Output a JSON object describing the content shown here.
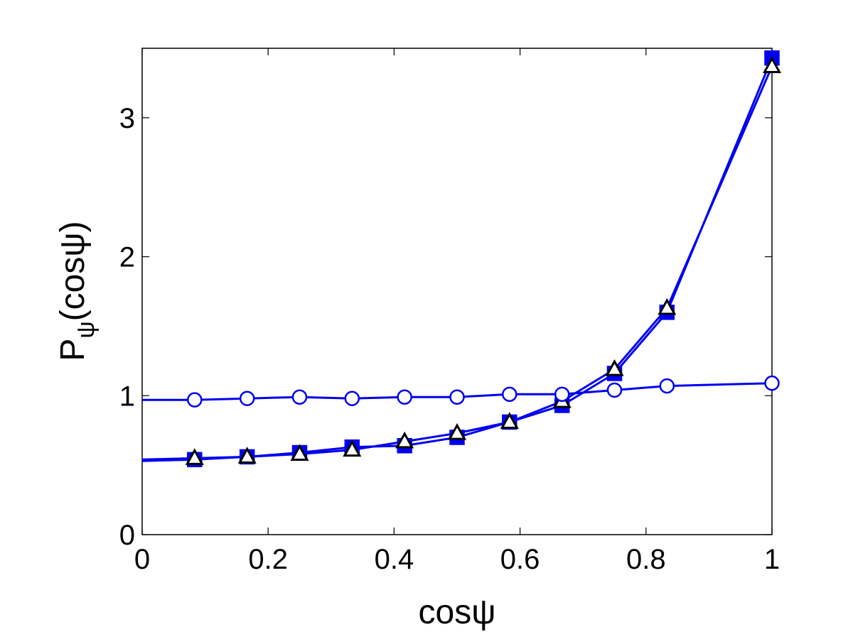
{
  "chart_data": {
    "type": "line",
    "xlabel": "cosψ",
    "ylabel_main": "P",
    "ylabel_sub": "ψ",
    "ylabel_tail": "(cosψ)",
    "xlim": [
      0,
      1
    ],
    "ylim": [
      0,
      3.5
    ],
    "xticks": [
      0,
      0.2,
      0.4,
      0.6,
      0.8,
      1
    ],
    "xtick_labels": [
      "0",
      "0.2",
      "0.4",
      "0.6",
      "0.8",
      "1"
    ],
    "yticks": [
      0,
      1,
      2,
      3
    ],
    "ytick_labels": [
      "0",
      "1",
      "2",
      "3"
    ],
    "grid": false,
    "colors": {
      "line": "#0000ee",
      "square_fill": "#0000ee",
      "triangle_edge": "#000000",
      "circle_edge": "#0000ee"
    },
    "series": [
      {
        "marker": "circle",
        "x": [
          0,
          0.0833,
          0.1667,
          0.25,
          0.3333,
          0.4167,
          0.5,
          0.5833,
          0.6667,
          0.75,
          0.8333,
          1
        ],
        "y": [
          0.97,
          0.97,
          0.98,
          0.99,
          0.98,
          0.99,
          0.99,
          1.01,
          1.01,
          1.04,
          1.07,
          1.09
        ]
      },
      {
        "marker": "square",
        "x": [
          0,
          0.0833,
          0.1667,
          0.25,
          0.3333,
          0.4167,
          0.5,
          0.5833,
          0.6667,
          0.75,
          0.8333,
          1
        ],
        "y": [
          0.53,
          0.54,
          0.56,
          0.59,
          0.63,
          0.64,
          0.7,
          0.81,
          0.93,
          1.16,
          1.6,
          3.43
        ]
      },
      {
        "marker": "triangle",
        "x": [
          0,
          0.0833,
          0.1667,
          0.25,
          0.3333,
          0.4167,
          0.5,
          0.5833,
          0.6667,
          0.75,
          0.8333,
          1
        ],
        "y": [
          0.54,
          0.55,
          0.56,
          0.58,
          0.61,
          0.67,
          0.73,
          0.81,
          0.96,
          1.19,
          1.63,
          3.37
        ]
      }
    ]
  }
}
